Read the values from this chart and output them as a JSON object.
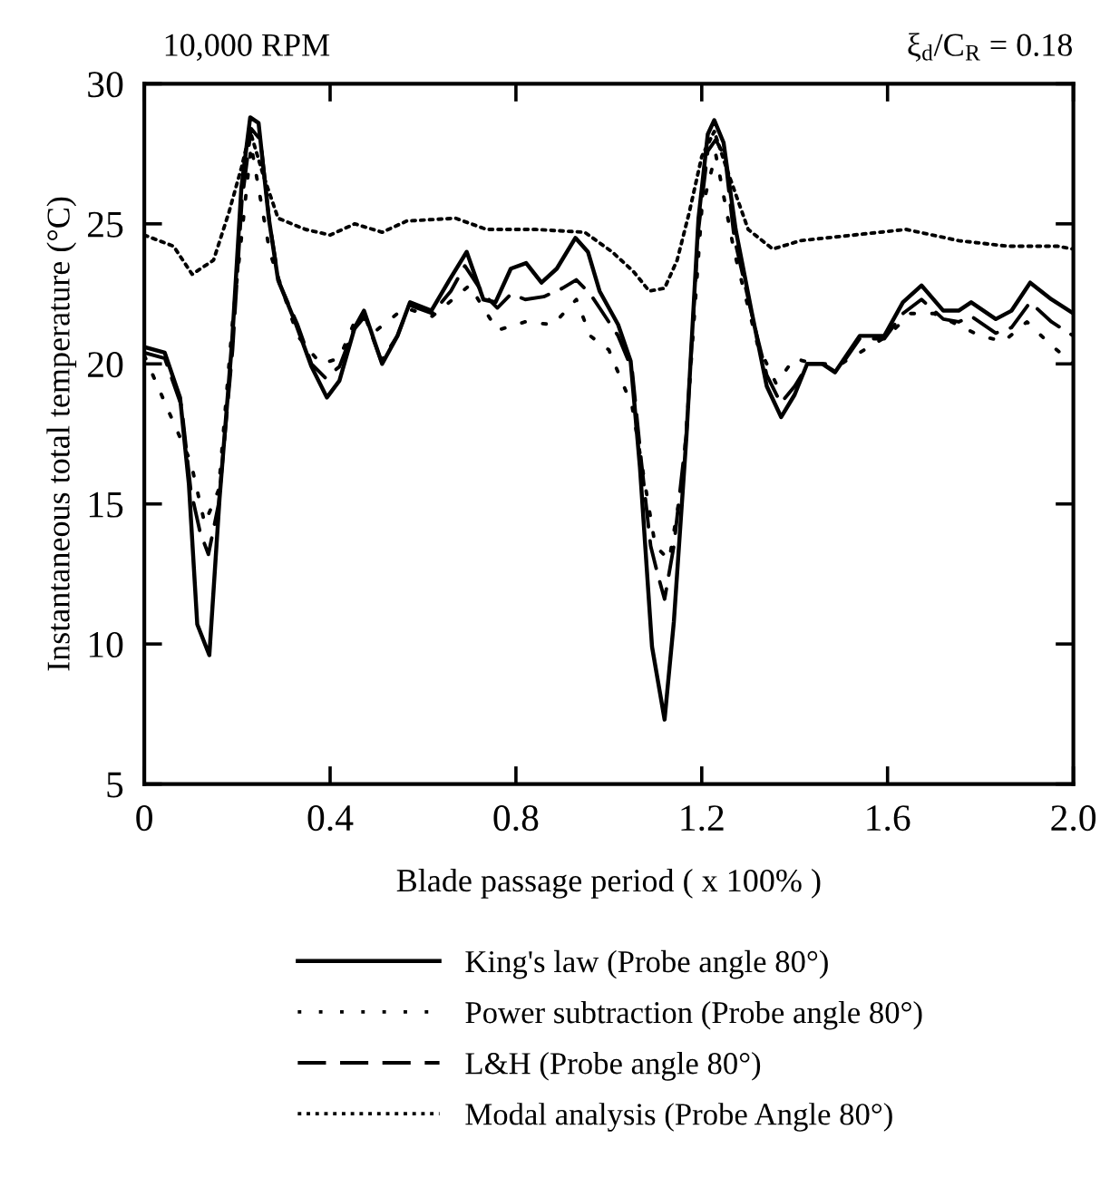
{
  "chart_data": {
    "type": "line",
    "xlabel": "Blade passage period ( x 100% )",
    "ylabel": "Instantaneous total temperature (°C)",
    "annotations": [
      "10,000 RPM",
      "ξ$_{d}$/C$_{R}$ = 0.18"
    ],
    "xlim": [
      0,
      2
    ],
    "ylim": [
      5,
      30
    ],
    "xticks": [
      0,
      0.4,
      0.8,
      1.2,
      1.6,
      {
        "value": 2,
        "label": "2.0"
      }
    ],
    "yticks": [
      5,
      10,
      15,
      20,
      25,
      30
    ],
    "grid": false,
    "legend": "bottom",
    "series": [
      {
        "name": "King's law (Probe angle 80°)",
        "color": "#000000",
        "line_style": "solid",
        "x": [
          0,
          0.044,
          0.077,
          0.096,
          0.114,
          0.14,
          0.162,
          0.189,
          0.209,
          0.228,
          0.246,
          0.268,
          0.288,
          0.327,
          0.36,
          0.393,
          0.42,
          0.453,
          0.473,
          0.512,
          0.545,
          0.572,
          0.618,
          0.657,
          0.694,
          0.73,
          0.756,
          0.789,
          0.822,
          0.855,
          0.888,
          0.928,
          0.955,
          0.98,
          1.02,
          1.047,
          1.067,
          1.093,
          1.12,
          1.14,
          1.167,
          1.193,
          1.213,
          1.227,
          1.247,
          1.273,
          1.307,
          1.34,
          1.371,
          1.4,
          1.427,
          1.46,
          1.487,
          1.54,
          1.593,
          1.633,
          1.673,
          1.72,
          1.753,
          1.78,
          1.833,
          1.867,
          1.907,
          1.953,
          2.0
        ],
        "values": [
          20.6,
          20.4,
          18.8,
          15.7,
          10.7,
          9.6,
          15.2,
          20.8,
          26.3,
          28.8,
          28.6,
          25.2,
          23.0,
          21.4,
          19.9,
          18.8,
          19.4,
          21.3,
          21.9,
          20.0,
          21.0,
          22.2,
          21.9,
          23.0,
          24.0,
          22.3,
          22.2,
          23.4,
          23.6,
          22.9,
          23.4,
          24.5,
          24.0,
          22.6,
          21.4,
          20.1,
          16.3,
          9.9,
          7.3,
          10.8,
          17.4,
          25.2,
          28.2,
          28.7,
          27.9,
          24.8,
          21.9,
          19.2,
          18.1,
          18.9,
          20.0,
          20.0,
          19.7,
          21.0,
          21.0,
          22.2,
          22.8,
          21.9,
          21.9,
          22.2,
          21.6,
          21.9,
          22.9,
          22.3,
          21.8
        ]
      },
      {
        "name": "Power subtraction (Probe angle 80°)",
        "color": "#000000",
        "line_style": "dotted",
        "x": [
          0,
          0.1,
          0.13,
          0.16,
          0.19,
          0.23,
          0.27,
          0.33,
          0.38,
          0.42,
          0.46,
          0.5,
          0.56,
          0.62,
          0.7,
          0.76,
          0.82,
          0.88,
          0.93,
          0.96,
          1.0,
          1.05,
          1.1,
          1.13,
          1.16,
          1.2,
          1.23,
          1.27,
          1.32,
          1.36,
          1.4,
          1.44,
          1.5,
          1.6,
          1.65,
          1.7,
          1.8,
          1.85,
          1.9,
          1.95,
          2.0
        ],
        "values": [
          20.3,
          16.5,
          14.3,
          15.5,
          21.5,
          27.8,
          24.0,
          21.0,
          20.0,
          20.2,
          21.8,
          21.2,
          22.0,
          21.7,
          22.8,
          21.2,
          21.5,
          21.4,
          22.3,
          21.0,
          20.5,
          18.5,
          13.5,
          13.0,
          16.0,
          25.5,
          27.5,
          24.0,
          20.7,
          19.3,
          20.2,
          20.0,
          20.0,
          21.0,
          21.8,
          21.8,
          21.0,
          20.8,
          21.5,
          20.7,
          20.0
        ]
      },
      {
        "name": "L&H (Probe angle 80°)",
        "color": "#000000",
        "line_style": "dashed",
        "x": [
          0,
          0.044,
          0.08,
          0.1,
          0.12,
          0.138,
          0.16,
          0.19,
          0.21,
          0.23,
          0.25,
          0.27,
          0.29,
          0.33,
          0.36,
          0.39,
          0.42,
          0.45,
          0.475,
          0.51,
          0.545,
          0.57,
          0.62,
          0.66,
          0.69,
          0.73,
          0.76,
          0.79,
          0.82,
          0.86,
          0.9,
          0.93,
          0.96,
          0.98,
          1.02,
          1.05,
          1.07,
          1.09,
          1.105,
          1.12,
          1.14,
          1.167,
          1.193,
          1.213,
          1.23,
          1.25,
          1.27,
          1.31,
          1.34,
          1.37,
          1.4,
          1.43,
          1.46,
          1.49,
          1.54,
          1.593,
          1.633,
          1.673,
          1.72,
          1.753,
          1.78,
          1.833,
          1.867,
          1.907,
          1.953,
          2.0
        ],
        "values": [
          20.4,
          20.2,
          18.5,
          15.5,
          14.0,
          13.2,
          15.0,
          20.5,
          25.8,
          28.4,
          28.0,
          25.0,
          22.9,
          21.4,
          20.0,
          19.5,
          19.9,
          21.2,
          21.7,
          20.1,
          21.0,
          22.1,
          21.8,
          22.6,
          23.5,
          22.5,
          22.0,
          22.5,
          22.3,
          22.4,
          22.7,
          23.0,
          22.5,
          22.0,
          21.0,
          19.8,
          16.5,
          13.5,
          12.5,
          11.6,
          13.5,
          17.5,
          24.8,
          27.6,
          28.0,
          27.4,
          24.5,
          21.6,
          19.6,
          18.6,
          19.2,
          20.0,
          20.0,
          19.7,
          20.9,
          20.9,
          21.8,
          22.3,
          21.6,
          21.5,
          21.7,
          21.1,
          21.3,
          22.2,
          21.5,
          21.0
        ]
      },
      {
        "name": "Modal analysis (Probe Angle 80°)",
        "color": "#000000",
        "line_style": "dotted",
        "x": [
          0,
          0.063,
          0.103,
          0.149,
          0.182,
          0.209,
          0.228,
          0.255,
          0.288,
          0.347,
          0.4,
          0.453,
          0.512,
          0.565,
          0.67,
          0.737,
          0.842,
          0.948,
          1.007,
          1.053,
          1.087,
          1.12,
          1.147,
          1.173,
          1.2,
          1.227,
          1.253,
          1.3,
          1.353,
          1.413,
          1.527,
          1.64,
          1.753,
          1.86,
          1.967,
          2.0
        ],
        "values": [
          24.6,
          24.2,
          23.2,
          23.7,
          25.4,
          27.0,
          28.3,
          26.8,
          25.2,
          24.8,
          24.6,
          25.0,
          24.7,
          25.1,
          25.2,
          24.8,
          24.8,
          24.7,
          24.0,
          23.3,
          22.6,
          22.7,
          23.7,
          25.4,
          27.4,
          28.3,
          27.0,
          24.8,
          24.1,
          24.4,
          24.6,
          24.8,
          24.4,
          24.2,
          24.2,
          24.1
        ]
      }
    ]
  }
}
